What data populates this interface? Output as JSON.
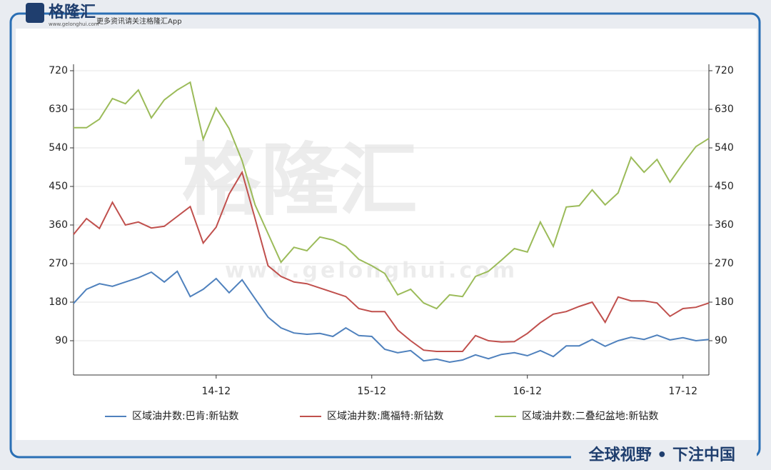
{
  "branding": {
    "logo": "格隆汇",
    "logo_url": "www.gelonghui.com",
    "slogan": "更多资讯请关注格隆汇App",
    "footer": "全球视野 • 下注中国",
    "watermark": "格隆汇",
    "watermark_url": "www.gelonghui.com"
  },
  "chart_data": {
    "type": "line",
    "categories": [
      null,
      null,
      null,
      null,
      null,
      null,
      null,
      null,
      null,
      null,
      null,
      "14-12",
      null,
      null,
      null,
      null,
      null,
      null,
      null,
      null,
      null,
      null,
      null,
      "15-12",
      null,
      null,
      null,
      null,
      null,
      null,
      null,
      null,
      null,
      null,
      null,
      "16-12",
      null,
      null,
      null,
      null,
      null,
      null,
      null,
      null,
      null,
      null,
      null,
      "17-12",
      null,
      null
    ],
    "series": [
      {
        "name": "区域油井数:巴肯:新钻数",
        "color": "#4f81bd",
        "values": [
          177,
          210,
          223,
          217,
          227,
          237,
          250,
          227,
          252,
          193,
          210,
          235,
          202,
          232,
          188,
          145,
          120,
          108,
          105,
          107,
          100,
          120,
          102,
          100,
          70,
          62,
          67,
          43,
          47,
          40,
          45,
          57,
          48,
          58,
          62,
          55,
          67,
          53,
          78,
          78,
          93,
          77,
          90,
          98,
          93,
          103,
          92,
          97,
          90,
          93
        ]
      },
      {
        "name": "区域油井数:鹰福特:新钻数",
        "color": "#c0504d",
        "values": [
          338,
          375,
          352,
          413,
          360,
          367,
          353,
          357,
          380,
          403,
          318,
          355,
          432,
          483,
          375,
          265,
          240,
          227,
          223,
          213,
          203,
          193,
          165,
          158,
          158,
          115,
          90,
          68,
          65,
          65,
          65,
          102,
          90,
          87,
          88,
          107,
          132,
          152,
          158,
          170,
          180,
          133,
          192,
          183,
          183,
          178,
          147,
          165,
          168,
          178
        ]
      },
      {
        "name": "区域油井数:二叠纪盆地:新钻数",
        "color": "#9bbb59",
        "values": [
          587,
          587,
          607,
          655,
          643,
          675,
          610,
          652,
          675,
          693,
          560,
          633,
          585,
          510,
          407,
          340,
          273,
          308,
          300,
          332,
          325,
          310,
          280,
          265,
          247,
          197,
          210,
          178,
          165,
          197,
          193,
          240,
          252,
          278,
          305,
          297,
          367,
          310,
          402,
          405,
          442,
          407,
          435,
          518,
          483,
          513,
          460,
          503,
          543,
          562
        ]
      }
    ],
    "ylim": [
      10,
      735
    ],
    "yticks": [
      90,
      180,
      270,
      360,
      450,
      540,
      630,
      720
    ],
    "y2lim": [
      10,
      735
    ],
    "y2ticks": [
      90,
      180,
      270,
      360,
      450,
      540,
      630,
      720
    ],
    "grid": true
  }
}
